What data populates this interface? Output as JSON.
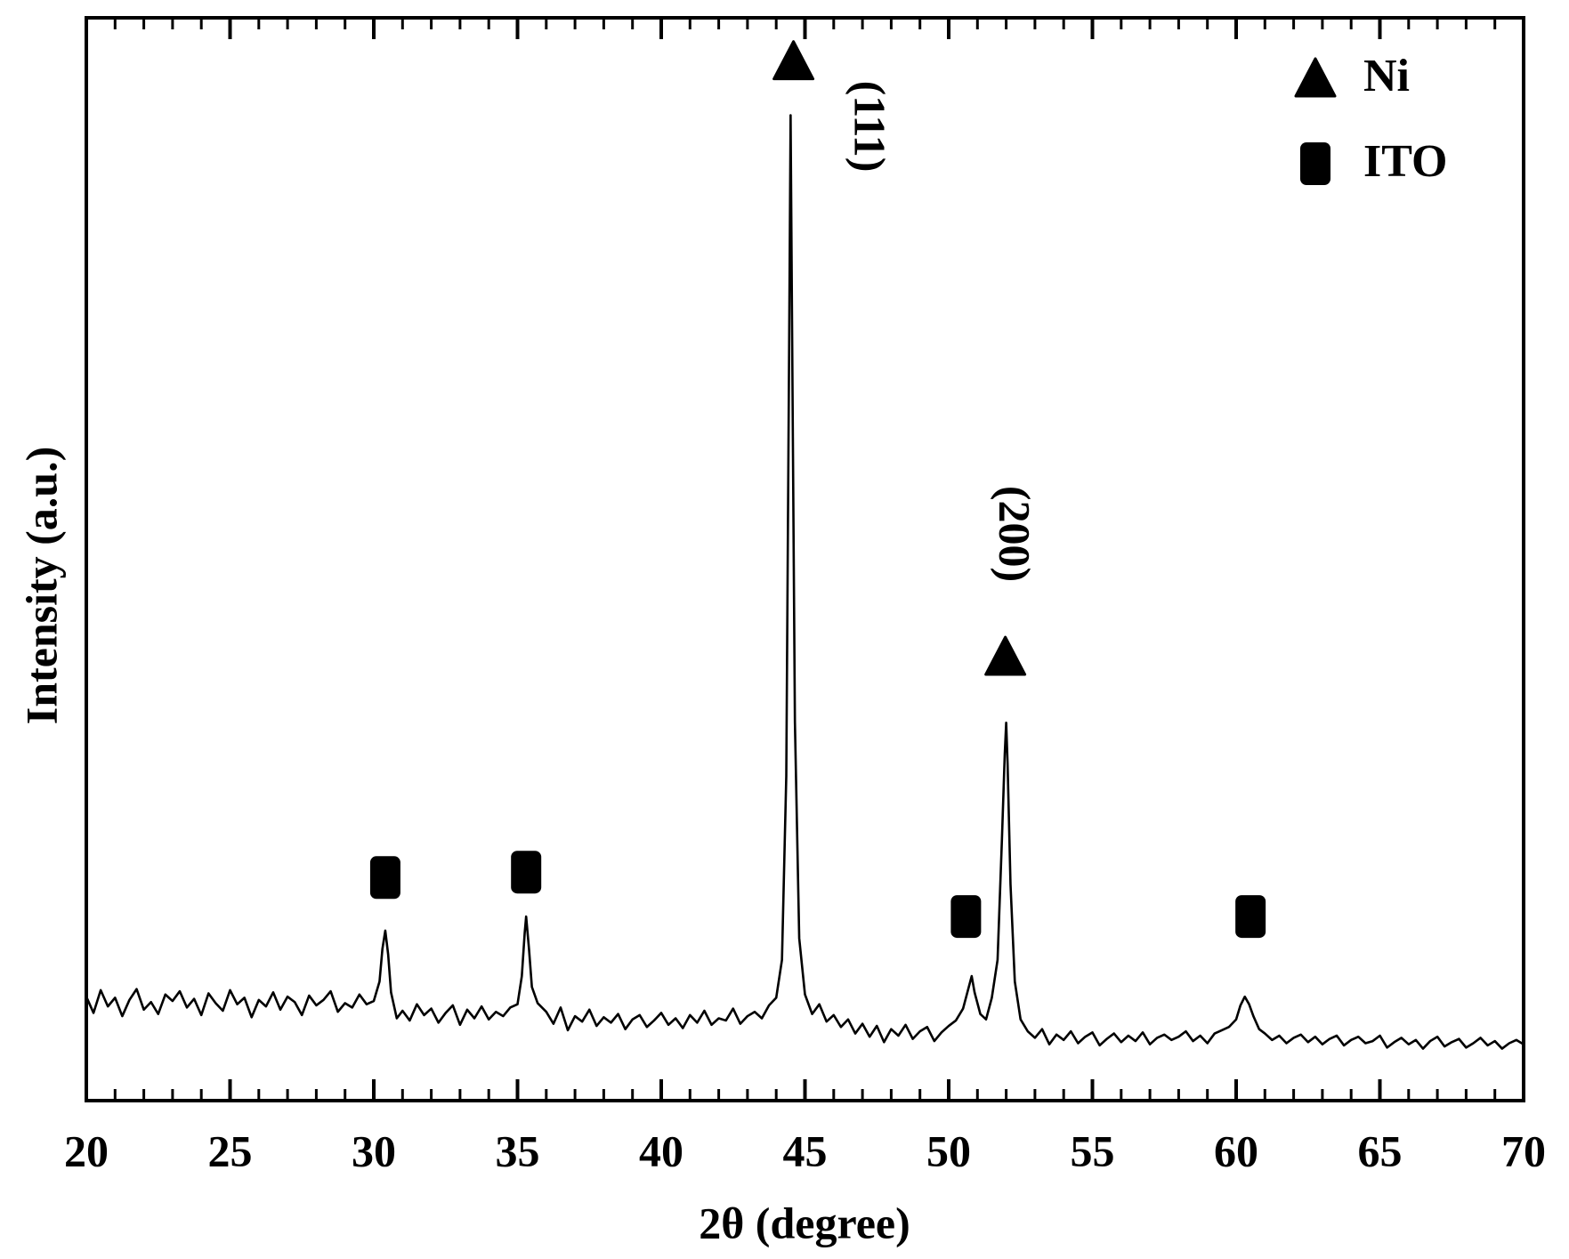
{
  "chart_data": {
    "type": "line",
    "x_label": "2θ  (degree)",
    "y_label": "Intensity (a.u.)",
    "xlim": [
      20,
      70
    ],
    "xticks": [
      20,
      25,
      30,
      35,
      40,
      45,
      50,
      55,
      60,
      65,
      70
    ],
    "minor_ticks_per_major": 4,
    "ylim": [
      0,
      100
    ],
    "legend": "top-right",
    "annotations": [
      "(111)",
      "(200)"
    ],
    "series": [
      {
        "type": "line",
        "color": "#000000",
        "x": [
          20,
          20.25,
          20.5,
          20.75,
          21,
          21.25,
          21.5,
          21.75,
          22,
          22.25,
          22.5,
          22.75,
          23,
          23.25,
          23.5,
          23.75,
          24,
          24.25,
          24.5,
          24.75,
          25,
          25.25,
          25.5,
          25.75,
          26,
          26.25,
          26.5,
          26.75,
          27,
          27.25,
          27.5,
          27.75,
          28,
          28.25,
          28.5,
          28.75,
          29,
          29.25,
          29.5,
          29.75,
          30,
          30.2,
          30.3,
          30.4,
          30.5,
          30.6,
          30.8,
          31,
          31.25,
          31.5,
          31.75,
          32,
          32.25,
          32.5,
          32.75,
          33,
          33.25,
          33.5,
          33.75,
          34,
          34.25,
          34.5,
          34.75,
          35,
          35.15,
          35.25,
          35.3,
          35.4,
          35.5,
          35.7,
          36,
          36.25,
          36.5,
          36.75,
          37,
          37.25,
          37.5,
          37.75,
          38,
          38.25,
          38.5,
          38.75,
          39,
          39.25,
          39.5,
          39.75,
          40,
          40.25,
          40.5,
          40.75,
          41,
          41.25,
          41.5,
          41.75,
          42,
          42.25,
          42.5,
          42.75,
          43,
          43.25,
          43.5,
          43.75,
          44,
          44.2,
          44.35,
          44.45,
          44.5,
          44.55,
          44.65,
          44.8,
          45,
          45.25,
          45.5,
          45.75,
          46,
          46.25,
          46.5,
          46.75,
          47,
          47.25,
          47.5,
          47.75,
          48,
          48.25,
          48.5,
          48.75,
          49,
          49.25,
          49.5,
          49.75,
          50,
          50.25,
          50.5,
          50.7,
          50.8,
          50.9,
          51.1,
          51.3,
          51.5,
          51.7,
          51.85,
          51.95,
          52,
          52.05,
          52.15,
          52.3,
          52.5,
          52.75,
          53,
          53.25,
          53.5,
          53.75,
          54,
          54.25,
          54.5,
          54.75,
          55,
          55.25,
          55.5,
          55.75,
          56,
          56.25,
          56.5,
          56.75,
          57,
          57.25,
          57.5,
          57.75,
          58,
          58.25,
          58.5,
          58.75,
          59,
          59.25,
          59.5,
          59.75,
          60,
          60.15,
          60.3,
          60.45,
          60.6,
          60.8,
          61,
          61.25,
          61.5,
          61.75,
          62,
          62.25,
          62.5,
          62.75,
          63,
          63.25,
          63.5,
          63.75,
          64,
          64.25,
          64.5,
          64.75,
          65,
          65.25,
          65.5,
          65.75,
          66,
          66.25,
          66.5,
          66.75,
          67,
          67.25,
          67.5,
          67.75,
          68,
          68.25,
          68.5,
          68.75,
          69,
          69.25,
          69.5,
          69.75,
          70
        ],
        "values": [
          9.6,
          8.1,
          10.2,
          8.7,
          9.5,
          7.8,
          9.3,
          10.3,
          8.4,
          9.1,
          8.0,
          9.8,
          9.2,
          10.1,
          8.6,
          9.4,
          7.9,
          9.9,
          9.0,
          8.3,
          10.2,
          8.9,
          9.5,
          7.7,
          9.3,
          8.7,
          10.0,
          8.4,
          9.6,
          9.1,
          7.9,
          9.7,
          8.8,
          9.3,
          10.1,
          8.2,
          9.0,
          8.6,
          9.8,
          8.9,
          9.2,
          11.0,
          14.0,
          15.7,
          13.5,
          10.0,
          7.6,
          8.3,
          7.4,
          8.9,
          7.9,
          8.5,
          7.2,
          8.1,
          8.8,
          7.0,
          8.4,
          7.6,
          8.7,
          7.5,
          8.2,
          7.8,
          8.6,
          8.9,
          11.5,
          15.5,
          17.0,
          14.0,
          10.5,
          9.0,
          8.2,
          7.1,
          8.6,
          6.5,
          7.8,
          7.3,
          8.4,
          6.9,
          7.7,
          7.2,
          8.0,
          6.6,
          7.5,
          7.9,
          6.8,
          7.4,
          8.1,
          7.0,
          7.6,
          6.7,
          7.9,
          7.2,
          8.3,
          7.0,
          7.6,
          7.4,
          8.5,
          7.1,
          7.8,
          8.2,
          7.6,
          8.8,
          9.5,
          13.0,
          30.0,
          70.0,
          91.0,
          72.0,
          35.0,
          15.0,
          9.8,
          8.0,
          8.9,
          7.3,
          7.9,
          6.8,
          7.5,
          6.2,
          7.1,
          5.9,
          6.9,
          5.4,
          6.6,
          6.0,
          7.0,
          5.7,
          6.4,
          6.8,
          5.5,
          6.3,
          6.9,
          7.4,
          8.5,
          10.5,
          11.5,
          10.0,
          8.0,
          7.5,
          9.5,
          13.0,
          24.0,
          32.0,
          34.9,
          31.0,
          20.0,
          11.0,
          7.5,
          6.4,
          5.8,
          6.6,
          5.2,
          6.1,
          5.6,
          6.4,
          5.3,
          5.9,
          6.3,
          5.1,
          5.7,
          6.2,
          5.4,
          6.0,
          5.5,
          6.3,
          5.2,
          5.8,
          6.1,
          5.6,
          5.9,
          6.4,
          5.5,
          6.0,
          5.3,
          6.2,
          6.5,
          6.8,
          7.5,
          8.8,
          9.6,
          8.9,
          7.8,
          6.6,
          6.2,
          5.6,
          6.0,
          5.3,
          5.8,
          6.1,
          5.4,
          5.9,
          5.2,
          5.7,
          6.0,
          5.1,
          5.6,
          5.9,
          5.3,
          5.5,
          6.0,
          4.9,
          5.4,
          5.8,
          5.2,
          5.6,
          4.8,
          5.5,
          5.9,
          5.0,
          5.4,
          5.7,
          4.9,
          5.3,
          5.8,
          5.1,
          5.5,
          4.8,
          5.3,
          5.6,
          5.2
        ]
      },
      {
        "type": "scatter",
        "name": "Ni",
        "marker": "triangle",
        "color": "#000000",
        "x": [
          44.6,
          51.97
        ],
        "values": [
          96,
          41
        ]
      },
      {
        "type": "scatter",
        "name": "ITO",
        "marker": "square",
        "color": "#000000",
        "x": [
          30.4,
          35.3,
          50.6,
          60.5
        ],
        "values": [
          20.6,
          21.1,
          17.0,
          17.0
        ]
      }
    ]
  }
}
